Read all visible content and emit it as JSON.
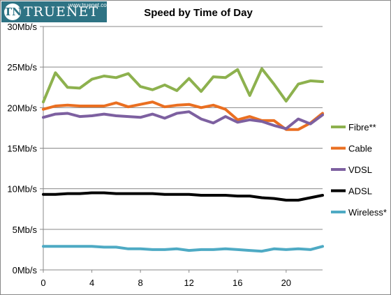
{
  "logo": {
    "name": "TRUENET",
    "emblem": "TN",
    "url": "www.truenet.co.nz"
  },
  "chart_data": {
    "type": "line",
    "title": "Speed by Time of Day",
    "xlabel": "",
    "ylabel": "",
    "xlim": [
      0,
      23
    ],
    "ylim": [
      0,
      30
    ],
    "x_ticks": [
      0,
      4,
      8,
      12,
      16,
      20
    ],
    "y_ticks": [
      0,
      5,
      10,
      15,
      20,
      25,
      30
    ],
    "y_tick_labels": [
      "0Mb/s",
      "5Mb/s",
      "10Mb/s",
      "15Mb/s",
      "20Mb/s",
      "25Mb/s",
      "30Mb/s"
    ],
    "grid": "horizontal",
    "legend_position": "right",
    "x": [
      0,
      1,
      2,
      3,
      4,
      5,
      6,
      7,
      8,
      9,
      10,
      11,
      12,
      13,
      14,
      15,
      16,
      17,
      18,
      19,
      20,
      21,
      22,
      23
    ],
    "series": [
      {
        "name": "Fibre**",
        "color": "#8db14e",
        "values": [
          20.7,
          24.3,
          22.5,
          22.4,
          23.5,
          23.9,
          23.7,
          24.2,
          22.6,
          22.2,
          22.8,
          22.1,
          23.6,
          22.0,
          23.8,
          23.7,
          24.7,
          21.5,
          24.8,
          22.9,
          20.8,
          22.9,
          23.3,
          23.2
        ]
      },
      {
        "name": "Cable",
        "color": "#ea6f21",
        "values": [
          19.8,
          20.2,
          20.3,
          20.2,
          20.2,
          20.2,
          20.6,
          20.1,
          20.4,
          20.7,
          20.1,
          20.3,
          20.4,
          20.0,
          20.3,
          19.8,
          18.5,
          18.9,
          18.4,
          18.4,
          17.3,
          17.3,
          18.1,
          19.3
        ]
      },
      {
        "name": "VDSL",
        "color": "#7d60a0",
        "values": [
          18.8,
          19.2,
          19.3,
          18.9,
          19.0,
          19.2,
          19.0,
          18.9,
          18.8,
          19.2,
          18.7,
          19.3,
          19.5,
          18.6,
          18.1,
          18.9,
          18.2,
          18.5,
          18.3,
          17.8,
          17.4,
          18.6,
          18.0,
          19.1
        ]
      },
      {
        "name": "ADSL",
        "color": "#000000",
        "values": [
          9.3,
          9.3,
          9.4,
          9.4,
          9.5,
          9.5,
          9.4,
          9.4,
          9.4,
          9.4,
          9.3,
          9.3,
          9.3,
          9.2,
          9.2,
          9.2,
          9.1,
          9.1,
          8.9,
          8.8,
          8.6,
          8.6,
          8.9,
          9.2
        ]
      },
      {
        "name": "Wireless*",
        "color": "#4eaac4",
        "values": [
          2.9,
          2.9,
          2.9,
          2.9,
          2.9,
          2.8,
          2.8,
          2.6,
          2.6,
          2.5,
          2.5,
          2.6,
          2.4,
          2.5,
          2.5,
          2.6,
          2.5,
          2.4,
          2.3,
          2.6,
          2.5,
          2.6,
          2.5,
          2.9
        ]
      }
    ]
  }
}
